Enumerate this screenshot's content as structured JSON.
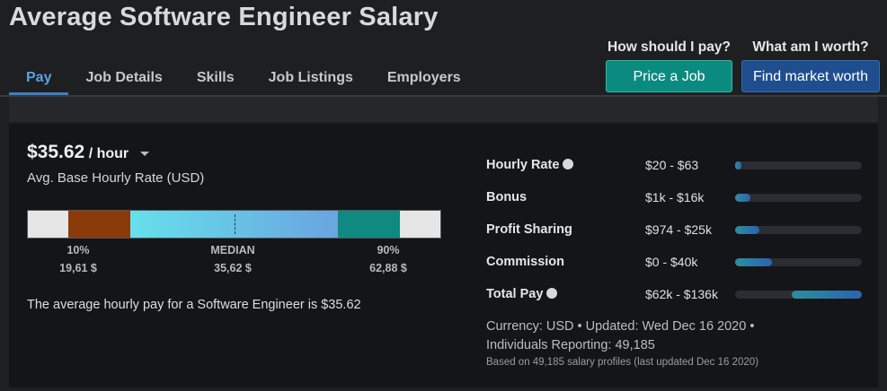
{
  "page_title": "Average Software Engineer Salary",
  "tabs": [
    {
      "label": "Pay",
      "active": true
    },
    {
      "label": "Job Details",
      "active": false
    },
    {
      "label": "Skills",
      "active": false
    },
    {
      "label": "Job Listings",
      "active": false
    },
    {
      "label": "Employers",
      "active": false
    }
  ],
  "cta": {
    "pay_question": "How should I pay?",
    "pay_button": "Price a Job",
    "worth_question": "What am I worth?",
    "worth_button": "Find market worth"
  },
  "summary": {
    "rate_value": "$35.62",
    "rate_unit": "/ hour",
    "rate_description": "Avg. Base Hourly Rate (USD)",
    "average_sentence": "The average hourly pay for a Software Engineer is $35.62"
  },
  "percentiles": {
    "p10": {
      "label": "10%",
      "value": "19,61 $"
    },
    "median": {
      "label": "MEDIAN",
      "value": "35,62 $"
    },
    "p90": {
      "label": "90%",
      "value": "62,88 $"
    }
  },
  "colors": {
    "bar_ends": "#e6e6e6",
    "bar_low": "#8b3a0c",
    "bar_mid_start": "#66e0ec",
    "bar_mid_end": "#6aa4df",
    "bar_high": "#0e8a80",
    "accent_blue": "#3d7fc4"
  },
  "stats": [
    {
      "label": "Hourly Rate",
      "info": true,
      "range": "$20 - $63",
      "fill_start": 0.0,
      "fill_end": 0.05
    },
    {
      "label": "Bonus",
      "info": false,
      "range": "$1k - $16k",
      "fill_start": 0.0,
      "fill_end": 0.12
    },
    {
      "label": "Profit Sharing",
      "info": false,
      "range": "$974 - $25k",
      "fill_start": 0.0,
      "fill_end": 0.19
    },
    {
      "label": "Commission",
      "info": false,
      "range": "$0 - $40k",
      "fill_start": 0.0,
      "fill_end": 0.29
    },
    {
      "label": "Total Pay",
      "info": true,
      "range": "$62k - $136k",
      "fill_start": 0.45,
      "fill_end": 1.0
    }
  ],
  "meta": {
    "line1": "Currency: USD • Updated: Wed Dec 16 2020 •",
    "line2": "Individuals Reporting: 49,185",
    "line3": "Based on 49,185 salary profiles (last updated Dec 16 2020)"
  }
}
